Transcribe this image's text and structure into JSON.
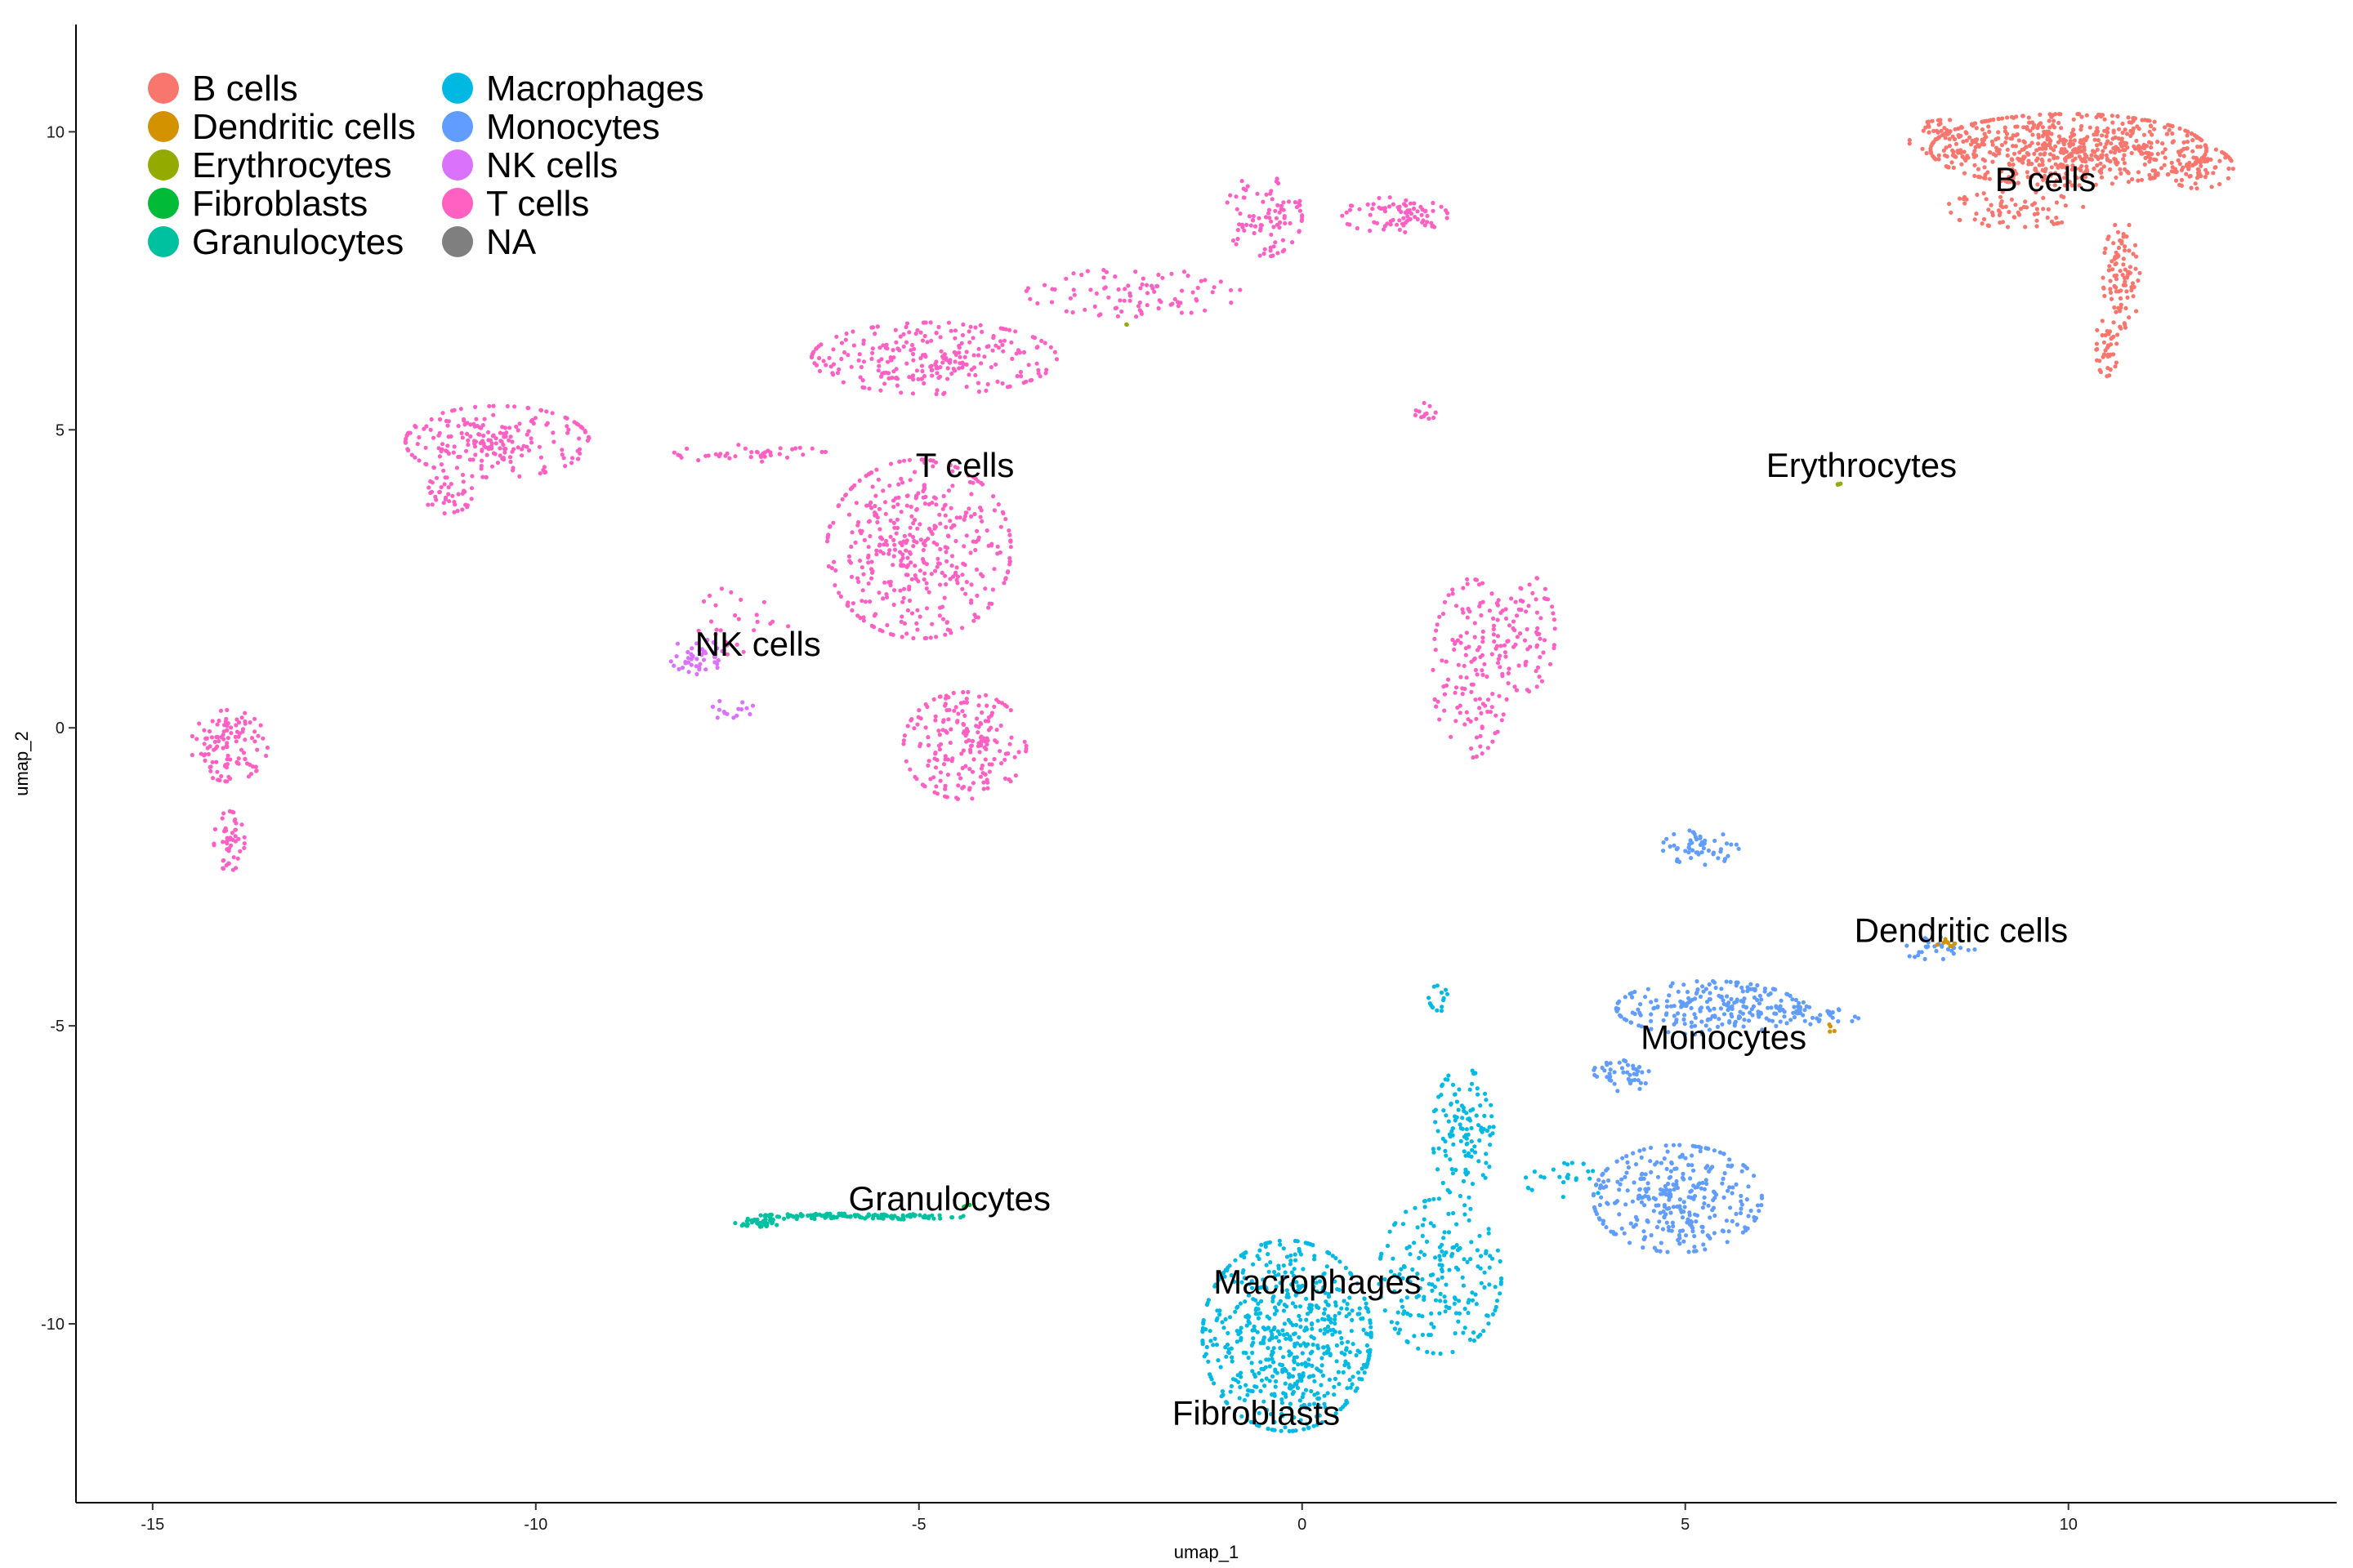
{
  "chart_data": {
    "type": "scatter",
    "title": "",
    "xlabel": "umap_1",
    "ylabel": "umap_2",
    "xlim": [
      -16,
      13.5
    ],
    "ylim": [
      -13,
      11.8
    ],
    "xticks": [
      -15,
      -10,
      -5,
      0,
      5,
      10
    ],
    "yticks": [
      -10,
      -5,
      0,
      5,
      10
    ],
    "xtick_labels": [
      "-15",
      "-10",
      "-5",
      "0",
      "5",
      "10"
    ],
    "ytick_labels": [
      "-10",
      "-5",
      "0",
      "5",
      "10"
    ],
    "grid": false,
    "legend_position": "top-left",
    "legend": [
      {
        "name": "B cells",
        "color": "#F8766D"
      },
      {
        "name": "Dendritic cells",
        "color": "#D39200"
      },
      {
        "name": "Erythrocytes",
        "color": "#93AA00"
      },
      {
        "name": "Fibroblasts",
        "color": "#00BA38"
      },
      {
        "name": "Granulocytes",
        "color": "#00C19F"
      },
      {
        "name": "Macrophages",
        "color": "#00B9E3"
      },
      {
        "name": "Monocytes",
        "color": "#619CFF"
      },
      {
        "name": "NK cells",
        "color": "#DB72FB"
      },
      {
        "name": "T cells",
        "color": "#FF61C3"
      },
      {
        "name": "NA",
        "color": "#7F7F7F"
      }
    ],
    "cluster_labels": [
      {
        "text": "B cells",
        "x": 9.7,
        "y": 9.2
      },
      {
        "text": "T cells",
        "x": -4.4,
        "y": 4.4
      },
      {
        "text": "Erythrocytes",
        "x": 7.3,
        "y": 4.4
      },
      {
        "text": "NK cells",
        "x": -7.1,
        "y": 1.4
      },
      {
        "text": "Dendritic cells",
        "x": 8.6,
        "y": -3.4
      },
      {
        "text": "Monocytes",
        "x": 5.5,
        "y": -5.2
      },
      {
        "text": "Granulocytes",
        "x": -4.6,
        "y": -7.9
      },
      {
        "text": "Macrophages",
        "x": 0.2,
        "y": -9.3
      },
      {
        "text": "Fibroblasts",
        "x": -0.6,
        "y": -11.5
      }
    ],
    "series": [
      {
        "name": "B cells",
        "color": "#F8766D",
        "regions": [
          {
            "cx": 10.0,
            "cy": 9.7,
            "rx": 1.8,
            "ry": 0.6,
            "n": 620
          },
          {
            "cx": 8.4,
            "cy": 9.9,
            "rx": 0.5,
            "ry": 0.3,
            "n": 60
          },
          {
            "cx": 11.7,
            "cy": 9.4,
            "rx": 0.45,
            "ry": 0.35,
            "n": 70
          },
          {
            "cx": 9.3,
            "cy": 8.7,
            "rx": 0.9,
            "ry": 0.3,
            "n": 70
          },
          {
            "cx": 10.7,
            "cy": 7.6,
            "rx": 0.25,
            "ry": 0.9,
            "n": 90
          },
          {
            "cx": 10.5,
            "cy": 6.4,
            "rx": 0.15,
            "ry": 0.5,
            "n": 40
          }
        ]
      },
      {
        "name": "T cells",
        "color": "#FF61C3",
        "regions": [
          {
            "cx": -4.8,
            "cy": 6.2,
            "rx": 1.6,
            "ry": 0.6,
            "n": 260
          },
          {
            "cx": -5.0,
            "cy": 3.0,
            "rx": 1.2,
            "ry": 1.5,
            "n": 420
          },
          {
            "cx": -4.4,
            "cy": -0.3,
            "rx": 0.8,
            "ry": 0.9,
            "n": 200
          },
          {
            "cx": -2.2,
            "cy": 7.3,
            "rx": 1.4,
            "ry": 0.4,
            "n": 90
          },
          {
            "cx": -0.5,
            "cy": 8.6,
            "rx": 0.5,
            "ry": 0.7,
            "n": 90
          },
          {
            "cx": 1.2,
            "cy": 8.6,
            "rx": 0.7,
            "ry": 0.3,
            "n": 80
          },
          {
            "cx": -10.5,
            "cy": 4.8,
            "rx": 1.2,
            "ry": 0.6,
            "n": 220
          },
          {
            "cx": -11.2,
            "cy": 3.9,
            "rx": 0.4,
            "ry": 0.3,
            "n": 40
          },
          {
            "cx": -7.2,
            "cy": 4.6,
            "rx": 1.0,
            "ry": 0.15,
            "n": 40
          },
          {
            "cx": -14.0,
            "cy": -0.3,
            "rx": 0.5,
            "ry": 0.6,
            "n": 110
          },
          {
            "cx": -14.0,
            "cy": -1.9,
            "rx": 0.2,
            "ry": 0.5,
            "n": 50
          },
          {
            "cx": 2.2,
            "cy": 1.0,
            "rx": 0.5,
            "ry": 1.5,
            "n": 140
          },
          {
            "cx": 2.9,
            "cy": 1.6,
            "rx": 0.4,
            "ry": 1.0,
            "n": 80
          },
          {
            "cx": 1.6,
            "cy": 5.3,
            "rx": 0.15,
            "ry": 0.15,
            "n": 12
          },
          {
            "cx": -7.3,
            "cy": 1.8,
            "rx": 0.6,
            "ry": 0.6,
            "n": 25
          }
        ]
      },
      {
        "name": "NK cells",
        "color": "#DB72FB",
        "regions": [
          {
            "cx": -7.9,
            "cy": 1.2,
            "rx": 0.35,
            "ry": 0.3,
            "n": 45
          },
          {
            "cx": -7.4,
            "cy": 0.3,
            "rx": 0.3,
            "ry": 0.2,
            "n": 15
          }
        ]
      },
      {
        "name": "Monocytes",
        "color": "#619CFF",
        "regions": [
          {
            "cx": 4.9,
            "cy": -7.9,
            "rx": 1.1,
            "ry": 0.9,
            "n": 320
          },
          {
            "cx": 5.3,
            "cy": -4.7,
            "rx": 1.2,
            "ry": 0.45,
            "n": 230
          },
          {
            "cx": 4.2,
            "cy": -5.8,
            "rx": 0.4,
            "ry": 0.3,
            "n": 45
          },
          {
            "cx": 5.2,
            "cy": -2.0,
            "rx": 0.5,
            "ry": 0.3,
            "n": 55
          },
          {
            "cx": 6.7,
            "cy": -4.8,
            "rx": 0.6,
            "ry": 0.2,
            "n": 35
          },
          {
            "cx": 8.3,
            "cy": -3.7,
            "rx": 0.5,
            "ry": 0.2,
            "n": 30
          }
        ]
      },
      {
        "name": "Macrophages",
        "color": "#00B9E3",
        "regions": [
          {
            "cx": -0.2,
            "cy": -10.2,
            "rx": 1.1,
            "ry": 1.6,
            "n": 620
          },
          {
            "cx": 1.8,
            "cy": -9.2,
            "rx": 0.8,
            "ry": 1.3,
            "n": 200
          },
          {
            "cx": 2.1,
            "cy": -6.8,
            "rx": 0.4,
            "ry": 1.1,
            "n": 120
          },
          {
            "cx": 1.8,
            "cy": -4.5,
            "rx": 0.15,
            "ry": 0.25,
            "n": 15
          },
          {
            "cx": 3.5,
            "cy": -7.6,
            "rx": 0.6,
            "ry": 0.3,
            "n": 25
          }
        ]
      },
      {
        "name": "Granulocytes",
        "color": "#00C19F",
        "regions": [
          {
            "cx": -5.8,
            "cy": -8.2,
            "rx": 1.4,
            "ry": 0.05,
            "n": 120
          },
          {
            "cx": -7.1,
            "cy": -8.3,
            "rx": 0.3,
            "ry": 0.07,
            "n": 40
          }
        ]
      },
      {
        "name": "Dendritic cells",
        "color": "#D39200",
        "regions": [
          {
            "cx": 8.4,
            "cy": -3.6,
            "rx": 0.12,
            "ry": 0.1,
            "n": 8
          },
          {
            "cx": 6.9,
            "cy": -5.0,
            "rx": 0.1,
            "ry": 0.1,
            "n": 4
          }
        ]
      },
      {
        "name": "Erythrocytes",
        "color": "#93AA00",
        "regions": [
          {
            "cx": 7.0,
            "cy": 4.1,
            "rx": 0.06,
            "ry": 0.05,
            "n": 4
          },
          {
            "cx": -2.3,
            "cy": 6.8,
            "rx": 0.05,
            "ry": 0.05,
            "n": 2
          }
        ]
      },
      {
        "name": "Fibroblasts",
        "color": "#00BA38",
        "regions": [
          {
            "cx": -4.4,
            "cy": -8.0,
            "rx": 0.1,
            "ry": 0.05,
            "n": 3
          }
        ]
      }
    ]
  }
}
